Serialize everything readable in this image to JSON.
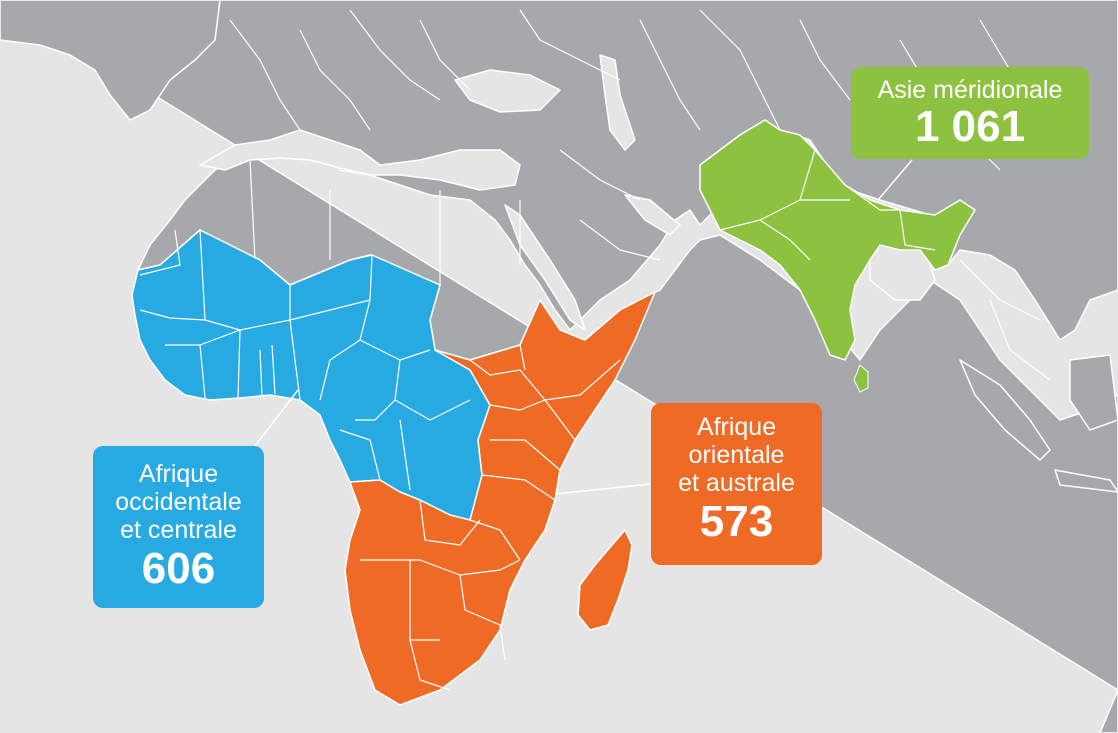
{
  "colors": {
    "sea": "#e5e5e5",
    "land": "#a6a8ab",
    "border": "#ffffff",
    "west_central": "#27a9e1",
    "east_south": "#ef6a25",
    "south_asia": "#8dc140"
  },
  "regions": [
    {
      "id": "south-asia",
      "label": "Asie méridionale",
      "value": "1 061",
      "color": "#8dc140"
    },
    {
      "id": "west-central",
      "label": "Afrique\noccidentale\net centrale",
      "value": "606",
      "color": "#27a9e1"
    },
    {
      "id": "east-south",
      "label": "Afrique\norientale\net australe",
      "value": "573",
      "color": "#ef6a25"
    }
  ]
}
